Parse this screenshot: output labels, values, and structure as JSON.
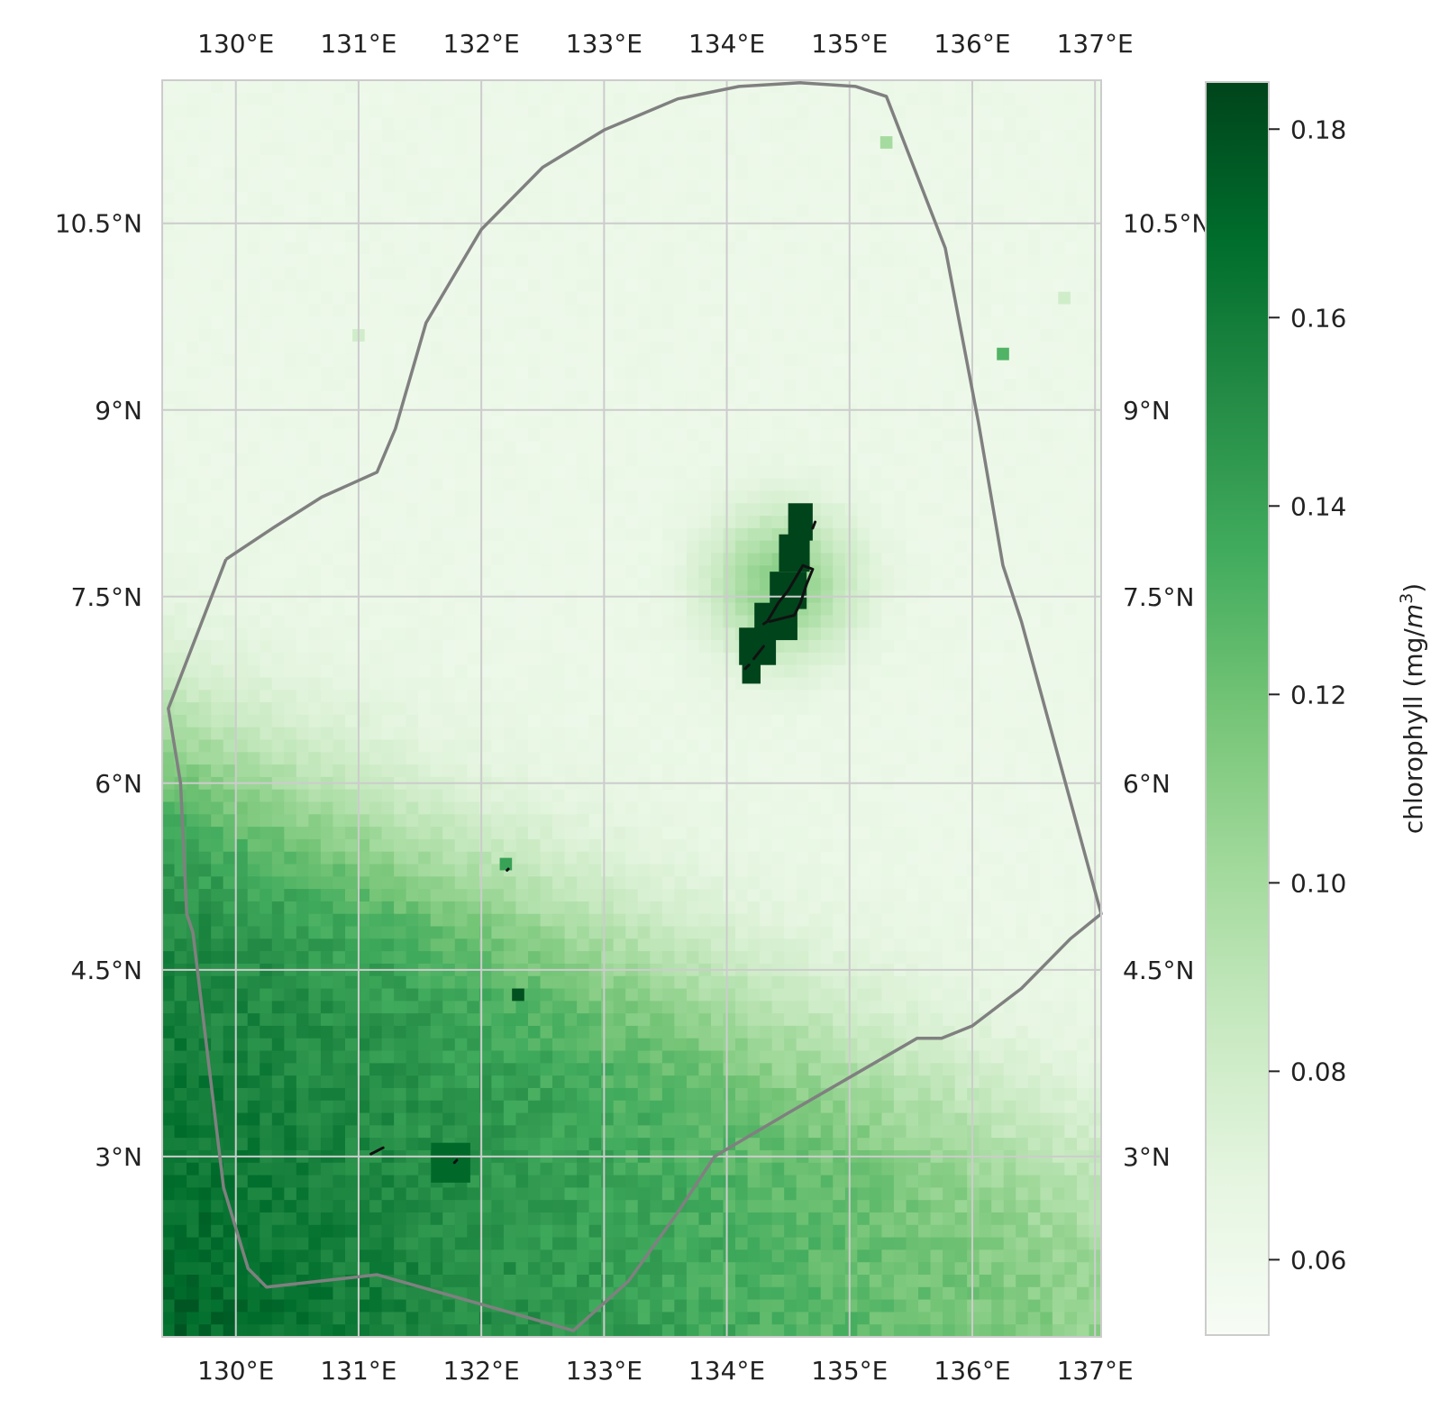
{
  "chart_data": {
    "type": "heatmap",
    "variable": "chlorophyll",
    "colorbar_label_prefix": "chlorophyll (mg/",
    "colorbar_label_unit": "m",
    "colorbar_label_exp": "3",
    "colorbar_label_suffix": ")",
    "colormap": [
      "#f7fcf5",
      "#e5f5e0",
      "#c7e9c0",
      "#a1d99b",
      "#74c476",
      "#41ab5d",
      "#238b45",
      "#006d2c",
      "#00441b"
    ],
    "value_range": [
      0.052,
      0.185
    ],
    "colorbar_ticks": [
      0.06,
      0.08,
      0.1,
      0.12,
      0.14,
      0.16,
      0.18
    ],
    "colorbar_tick_labels": [
      "0.06",
      "0.08",
      "0.10",
      "0.12",
      "0.14",
      "0.16",
      "0.18"
    ],
    "lon_range": [
      129.4,
      137.05
    ],
    "lat_range": [
      1.55,
      11.65
    ],
    "lon_ticks": [
      130,
      131,
      132,
      133,
      134,
      135,
      136,
      137
    ],
    "lon_tick_labels": [
      "130°E",
      "131°E",
      "132°E",
      "133°E",
      "134°E",
      "135°E",
      "136°E",
      "137°E"
    ],
    "lat_ticks": [
      3,
      4.5,
      6,
      7.5,
      9,
      10.5
    ],
    "lat_tick_labels": [
      "3°N",
      "4.5°N",
      "6°N",
      "7.5°N",
      "9°N",
      "10.5°N"
    ],
    "gridlines": true,
    "field_description_values": {
      "north_background": 0.062,
      "southwest_max": 0.18,
      "southeast_background": 0.11
    },
    "hotspots": [
      {
        "lon": 134.45,
        "lat": 7.6,
        "value": 0.185
      },
      {
        "lon": 131.75,
        "lat": 2.95,
        "value": 0.17
      },
      {
        "lon": 132.3,
        "lat": 4.3,
        "value": 0.18
      },
      {
        "lon": 132.2,
        "lat": 5.35,
        "value": 0.14
      },
      {
        "lon": 136.25,
        "lat": 9.45,
        "value": 0.13
      },
      {
        "lon": 135.3,
        "lat": 11.15,
        "value": 0.1
      },
      {
        "lon": 131.0,
        "lat": 9.6,
        "value": 0.08
      },
      {
        "lon": 136.75,
        "lat": 9.9,
        "value": 0.08
      }
    ],
    "eez_boundary": [
      [
        129.92,
        7.8
      ],
      [
        130.3,
        8.05
      ],
      [
        130.7,
        8.3
      ],
      [
        131.15,
        8.5
      ],
      [
        131.3,
        8.85
      ],
      [
        131.55,
        9.7
      ],
      [
        132.0,
        10.45
      ],
      [
        132.5,
        10.95
      ],
      [
        133.0,
        11.25
      ],
      [
        133.6,
        11.5
      ],
      [
        134.1,
        11.6
      ],
      [
        134.6,
        11.63
      ],
      [
        135.05,
        11.6
      ],
      [
        135.3,
        11.52
      ],
      [
        135.78,
        10.3
      ],
      [
        136.05,
        8.9
      ],
      [
        136.25,
        7.75
      ],
      [
        136.4,
        7.3
      ],
      [
        137.05,
        4.95
      ],
      [
        136.8,
        4.75
      ],
      [
        136.4,
        4.35
      ],
      [
        136.0,
        4.05
      ],
      [
        135.75,
        3.95
      ],
      [
        135.55,
        3.95
      ],
      [
        134.5,
        3.35
      ],
      [
        133.9,
        3.0
      ],
      [
        133.6,
        2.55
      ],
      [
        133.2,
        2.0
      ],
      [
        132.75,
        1.6
      ],
      [
        132.4,
        1.7
      ],
      [
        131.15,
        2.05
      ],
      [
        130.25,
        1.95
      ],
      [
        130.1,
        2.1
      ],
      [
        129.9,
        2.75
      ],
      [
        129.65,
        4.8
      ],
      [
        129.6,
        4.95
      ],
      [
        129.55,
        6.0
      ],
      [
        129.45,
        6.6
      ],
      [
        129.92,
        7.8
      ]
    ],
    "islands": [
      {
        "name_visible": false,
        "lon": [
          134.35,
          134.55,
          134.6,
          134.65,
          134.7,
          134.62,
          134.5,
          134.42,
          134.33,
          134.3
        ],
        "lat": [
          7.3,
          7.35,
          7.45,
          7.6,
          7.72,
          7.75,
          7.55,
          7.45,
          7.3,
          7.28
        ]
      },
      {
        "name_visible": false,
        "lon": [
          134.7,
          134.72
        ],
        "lat": [
          8.05,
          8.1
        ]
      },
      {
        "name_visible": false,
        "lon": [
          134.22,
          134.3
        ],
        "lat": [
          7.0,
          7.1
        ]
      },
      {
        "name_visible": false,
        "lon": [
          134.15,
          134.18
        ],
        "lat": [
          6.92,
          6.95
        ]
      },
      {
        "name_visible": false,
        "lon": [
          131.1,
          131.2
        ],
        "lat": [
          3.02,
          3.07
        ]
      },
      {
        "name_visible": false,
        "lon": [
          131.78,
          131.8
        ],
        "lat": [
          2.95,
          2.97
        ]
      },
      {
        "name_visible": false,
        "lon": [
          132.21,
          132.22
        ],
        "lat": [
          5.3,
          5.31
        ]
      }
    ]
  }
}
